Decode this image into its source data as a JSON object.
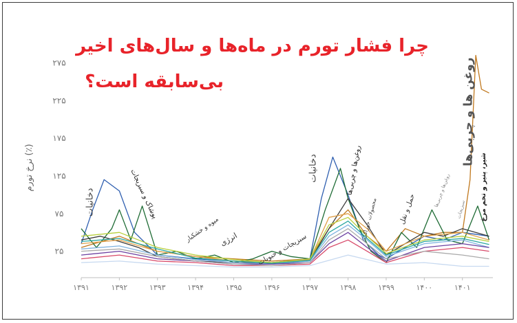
{
  "title": {
    "line1": "چرا فشار تورم در ماه‌ها و سال‌های اخیر",
    "line2": "بی‌سابقه است؟"
  },
  "chart_data": {
    "type": "line",
    "ylabel": "نرخ تورم (٪)",
    "xlabel": "",
    "ylim": [
      -10,
      300
    ],
    "xlim": [
      1391,
      1401.8
    ],
    "y_ticks": [
      {
        "value": 25,
        "label": "۲۵"
      },
      {
        "value": 75,
        "label": "۷۵"
      },
      {
        "value": 125,
        "label": "۱۲۵"
      },
      {
        "value": 175,
        "label": "۱۷۵"
      },
      {
        "value": 225,
        "label": "۲۲۵"
      },
      {
        "value": 275,
        "label": "۲۷۵"
      }
    ],
    "x_ticks": [
      {
        "value": 1391,
        "label": "۱۳۹۱"
      },
      {
        "value": 1392,
        "label": "۱۳۹۲"
      },
      {
        "value": 1393,
        "label": "۱۳۹۳"
      },
      {
        "value": 1394,
        "label": "۱۳۹۴"
      },
      {
        "value": 1395,
        "label": "۱۳۹۵"
      },
      {
        "value": 1396,
        "label": "۱۳۹۶"
      },
      {
        "value": 1397,
        "label": "۱۳۹۷"
      },
      {
        "value": 1398,
        "label": "۱۳۹۸"
      },
      {
        "value": 1399,
        "label": "۱۳۹۹"
      },
      {
        "value": 1400,
        "label": "۱۴۰۰"
      },
      {
        "value": 1401,
        "label": "۱۴۰۱"
      }
    ],
    "series": [
      {
        "color": "#c0781e",
        "x": [
          1391,
          1392,
          1393,
          1394,
          1395,
          1396,
          1397,
          1397.5,
          1398,
          1398.5,
          1399,
          1399.5,
          1400,
          1400.5,
          1401,
          1401.2,
          1401.35,
          1401.5,
          1401.7
        ],
        "y": [
          30,
          45,
          25,
          18,
          15,
          12,
          15,
          55,
          80,
          45,
          25,
          55,
          45,
          50,
          50,
          120,
          285,
          240,
          235
        ]
      },
      {
        "color": "#2f5fb0",
        "x": [
          1391,
          1391.3,
          1391.6,
          1392,
          1392.4,
          1392.8,
          1393,
          1394,
          1395,
          1396,
          1397,
          1397.3,
          1397.6,
          1398,
          1398.4,
          1398.8,
          1399,
          1399.5,
          1400,
          1400.5,
          1401,
          1401.7
        ],
        "y": [
          35,
          80,
          120,
          105,
          50,
          30,
          20,
          15,
          12,
          10,
          15,
          95,
          150,
          100,
          40,
          20,
          15,
          30,
          45,
          40,
          50,
          45
        ]
      },
      {
        "color": "#1e6b34",
        "x": [
          1391,
          1391.4,
          1391.8,
          1392,
          1392.3,
          1392.6,
          1393,
          1393.5,
          1394,
          1394.5,
          1395,
          1395.5,
          1396,
          1396.5,
          1397,
          1397.4,
          1397.8,
          1398,
          1398.3,
          1398.6,
          1399,
          1399.4,
          1399.8,
          1400.2,
          1400.6,
          1401,
          1401.4,
          1401.7
        ],
        "y": [
          55,
          30,
          55,
          80,
          40,
          85,
          20,
          25,
          15,
          20,
          10,
          15,
          25,
          18,
          15,
          80,
          135,
          95,
          55,
          25,
          10,
          50,
          30,
          80,
          40,
          35,
          85,
          40
        ]
      },
      {
        "color": "#3a3a3a",
        "x": [
          1391,
          1391.5,
          1392,
          1392.5,
          1393,
          1394,
          1395,
          1396,
          1397,
          1397.5,
          1398,
          1398.5,
          1399,
          1399.5,
          1400,
          1400.5,
          1401,
          1401.7
        ],
        "y": [
          40,
          45,
          38,
          30,
          18,
          12,
          10,
          10,
          12,
          55,
          95,
          60,
          20,
          35,
          50,
          45,
          55,
          45
        ]
      },
      {
        "color": "#e0a14a",
        "x": [
          1391,
          1392,
          1393,
          1394,
          1395,
          1396,
          1397,
          1397.5,
          1398,
          1398.5,
          1399,
          1400,
          1401,
          1401.7
        ],
        "y": [
          35,
          40,
          25,
          18,
          12,
          10,
          14,
          70,
          75,
          55,
          25,
          45,
          50,
          40
        ]
      },
      {
        "color": "#7fb3e0",
        "x": [
          1391,
          1392,
          1393,
          1394,
          1395,
          1396,
          1397,
          1397.5,
          1398,
          1398.5,
          1399,
          1400,
          1401,
          1401.7
        ],
        "y": [
          28,
          32,
          20,
          14,
          10,
          8,
          12,
          45,
          60,
          40,
          18,
          35,
          40,
          30
        ]
      },
      {
        "color": "#b8cf3c",
        "x": [
          1391,
          1392,
          1393,
          1394,
          1395,
          1396,
          1397,
          1397.5,
          1398,
          1398.5,
          1399,
          1400,
          1401,
          1401.7
        ],
        "y": [
          45,
          50,
          30,
          20,
          14,
          10,
          15,
          60,
          70,
          45,
          22,
          40,
          45,
          38
        ]
      },
      {
        "color": "#6b3fa0",
        "x": [
          1391,
          1392,
          1393,
          1394,
          1395,
          1396,
          1397,
          1397.5,
          1398,
          1398.5,
          1399,
          1400,
          1401,
          1401.7
        ],
        "y": [
          20,
          25,
          15,
          12,
          8,
          8,
          10,
          35,
          50,
          30,
          12,
          30,
          35,
          30
        ]
      },
      {
        "color": "#d84a6a",
        "x": [
          1391,
          1392,
          1393,
          1394,
          1395,
          1396,
          1397,
          1397.5,
          1398,
          1398.5,
          1399,
          1400,
          1401,
          1401.7
        ],
        "y": [
          15,
          20,
          12,
          10,
          6,
          6,
          8,
          30,
          40,
          25,
          10,
          25,
          30,
          25
        ]
      },
      {
        "color": "#2aa7a0",
        "x": [
          1391,
          1392,
          1393,
          1394,
          1395,
          1396,
          1397,
          1397.5,
          1398,
          1398.5,
          1399,
          1400,
          1401,
          1401.7
        ],
        "y": [
          38,
          42,
          28,
          16,
          12,
          9,
          13,
          50,
          65,
          42,
          20,
          38,
          42,
          34
        ]
      },
      {
        "color": "#aaaaaa",
        "x": [
          1391,
          1392,
          1393,
          1394,
          1395,
          1396,
          1397,
          1397.5,
          1398,
          1398.5,
          1399,
          1400,
          1401,
          1401.7
        ],
        "y": [
          25,
          28,
          18,
          12,
          8,
          6,
          10,
          40,
          55,
          35,
          15,
          25,
          20,
          15
        ]
      },
      {
        "color": "#c7d9f0",
        "x": [
          1391,
          1392,
          1393,
          1394,
          1395,
          1396,
          1397,
          1398,
          1399,
          1400,
          1401,
          1401.7
        ],
        "y": [
          10,
          12,
          8,
          6,
          4,
          4,
          6,
          20,
          8,
          10,
          5,
          5
        ]
      }
    ],
    "annotations": [
      {
        "text": "دخانیات",
        "x": 1391.3,
        "y": 90,
        "rotate": -90,
        "size": 13,
        "color": "#444444"
      },
      {
        "text": "پوشاک و سبزیجات",
        "x": 1392.6,
        "y": 100,
        "rotate": 65,
        "size": 10,
        "color": "#222222"
      },
      {
        "text": "میوه و خشکبار",
        "x": 1394.2,
        "y": 52,
        "rotate": -35,
        "size": 9,
        "color": "#333333"
      },
      {
        "text": "انرژی",
        "x": 1394.9,
        "y": 38,
        "rotate": -30,
        "size": 11,
        "color": "#333333"
      },
      {
        "text": "سبزیجات و حبوبات",
        "x": 1396.3,
        "y": 25,
        "rotate": -30,
        "size": 10,
        "color": "#333333"
      },
      {
        "text": "دخانیات",
        "x": 1397.15,
        "y": 135,
        "rotate": -90,
        "size": 13,
        "color": "#444444"
      },
      {
        "text": "روغن‌ها و چربی‌ها",
        "x": 1398.2,
        "y": 132,
        "rotate": -80,
        "size": 10,
        "color": "#222222"
      },
      {
        "text": "محصولات خوراکی",
        "x": 1398.6,
        "y": 68,
        "rotate": -75,
        "size": 8,
        "color": "#444444"
      },
      {
        "text": "حمل و نقل",
        "x": 1399.6,
        "y": 80,
        "rotate": -70,
        "size": 10,
        "color": "#333333"
      },
      {
        "text": "روغن‌ها و چربی‌ها",
        "x": 1400.5,
        "y": 105,
        "rotate": -70,
        "size": 7,
        "color": "#888888"
      },
      {
        "text": "سبزیجات",
        "x": 1401.0,
        "y": 80,
        "rotate": -75,
        "size": 7,
        "color": "#888888"
      },
      {
        "text": "روغن ها و چربی‌ها",
        "x": 1401.25,
        "y": 210,
        "rotate": -90,
        "size": 17,
        "color": "#555555",
        "bold": true
      },
      {
        "text": "شیر، پنیر و تخم مرغ",
        "x": 1401.6,
        "y": 110,
        "rotate": -90,
        "size": 10,
        "color": "#222222",
        "bold": true
      }
    ]
  }
}
